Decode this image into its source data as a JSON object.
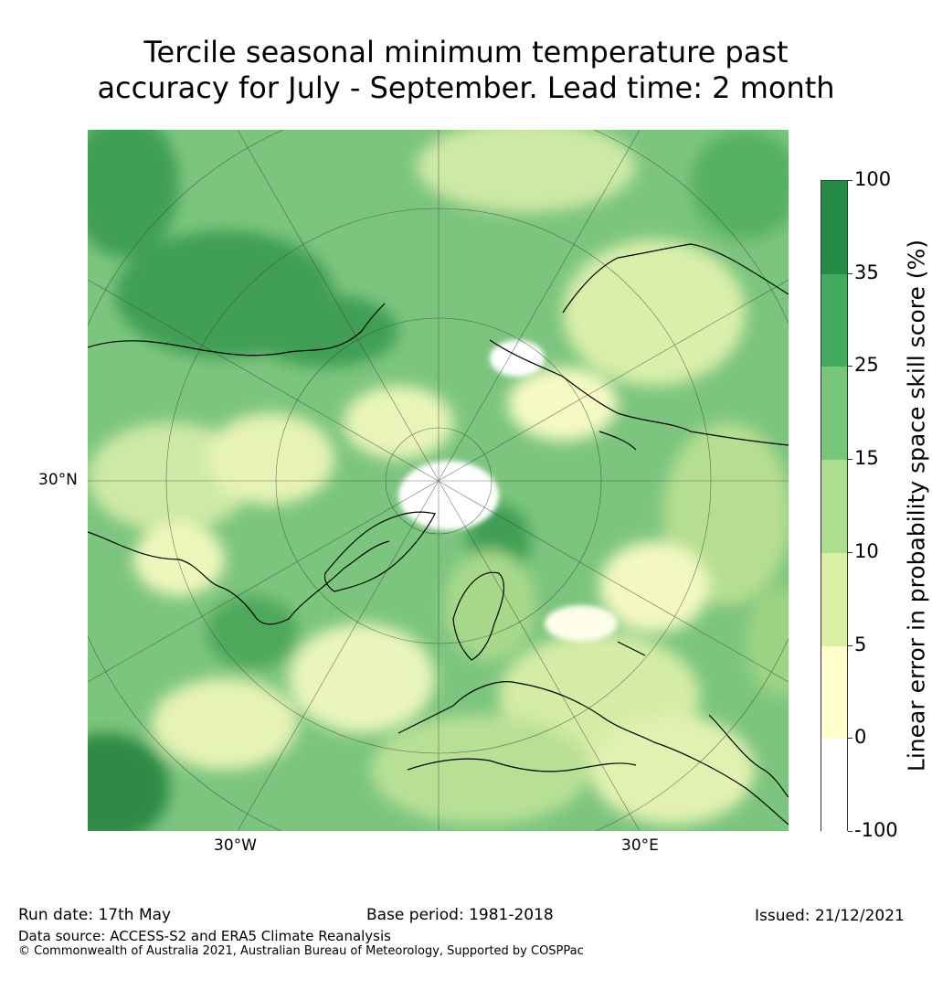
{
  "title_line1": "Tercile seasonal minimum temperature past",
  "title_line2": "accuracy for July - September. Lead time: 2 month",
  "map": {
    "lat_label": "30°N",
    "lon_labels": [
      "30°W",
      "30°E"
    ],
    "colors": {
      "ocean_base": "#7cc57f",
      "land_base": "#cde9a6",
      "deep": "#3f9f55",
      "light": "#f8fbc6",
      "white": "#ffffff",
      "coast": "#000000",
      "grid": "#3a3a3a"
    }
  },
  "colorbar": {
    "label": "Linear error in probability space skill score (%)",
    "ticks": [
      "100",
      "35",
      "25",
      "15",
      "10",
      "5",
      "0",
      "-100"
    ],
    "bins": [
      {
        "range": "35 to 100",
        "color": "#238b45"
      },
      {
        "range": "25 to 35",
        "color": "#41ab5d"
      },
      {
        "range": "15 to 25",
        "color": "#78c679"
      },
      {
        "range": "10 to 15",
        "color": "#addd8e"
      },
      {
        "range": "5 to 10",
        "color": "#d9f0a3"
      },
      {
        "range": "0 to 5",
        "color": "#ffffcc"
      },
      {
        "range": "-100 to 0",
        "color": "#ffffff"
      }
    ]
  },
  "footer": {
    "run_date": "Run date: 17th May",
    "base_period": "Base period: 1981-2018",
    "issued": "Issued: 21/12/2021",
    "data_source": "Data source: ACCESS-S2 and ERA5 Climate Reanalysis",
    "copyright": "© Commonwealth of Australia 2021, Australian Bureau of Meteorology, Supported by COSPPac"
  }
}
